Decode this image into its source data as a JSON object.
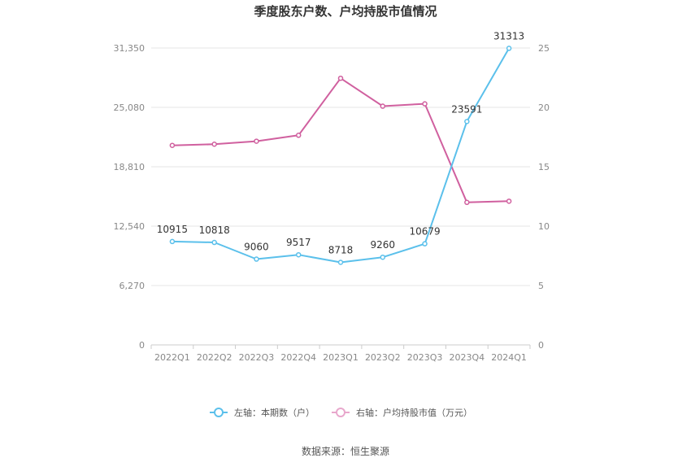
{
  "chart_data": {
    "type": "line",
    "title": "季度股东户数、户均持股市值情况",
    "categories": [
      "2022Q1",
      "2022Q2",
      "2022Q3",
      "2022Q4",
      "2023Q1",
      "2023Q2",
      "2023Q3",
      "2023Q4",
      "2024Q1"
    ],
    "left_axis": {
      "ylim": [
        0,
        31350
      ],
      "ticks": [
        "0",
        "6,270",
        "12,540",
        "18,810",
        "25,080",
        "31,350"
      ]
    },
    "right_axis": {
      "ylim": [
        0,
        25
      ],
      "ticks": [
        "0",
        "5",
        "10",
        "15",
        "20",
        "25"
      ]
    },
    "series": [
      {
        "name": "左轴：本期数（户）",
        "axis": "left",
        "color": "#5bc0eb",
        "values": [
          10915,
          10818,
          9060,
          9517,
          8718,
          9260,
          10679,
          23591,
          31313
        ],
        "labels": [
          "10915",
          "10818",
          "9060",
          "9517",
          "8718",
          "9260",
          "10679",
          "23591",
          "31313"
        ]
      },
      {
        "name": "右轴：户均持股市值（万元）",
        "axis": "right",
        "color": "#d0609f",
        "values": [
          16.8,
          16.9,
          17.15,
          17.65,
          22.45,
          20.1,
          20.3,
          12.0,
          12.1
        ]
      }
    ],
    "grid": true,
    "legend_position": "bottom"
  },
  "source": "数据来源：恒生聚源"
}
